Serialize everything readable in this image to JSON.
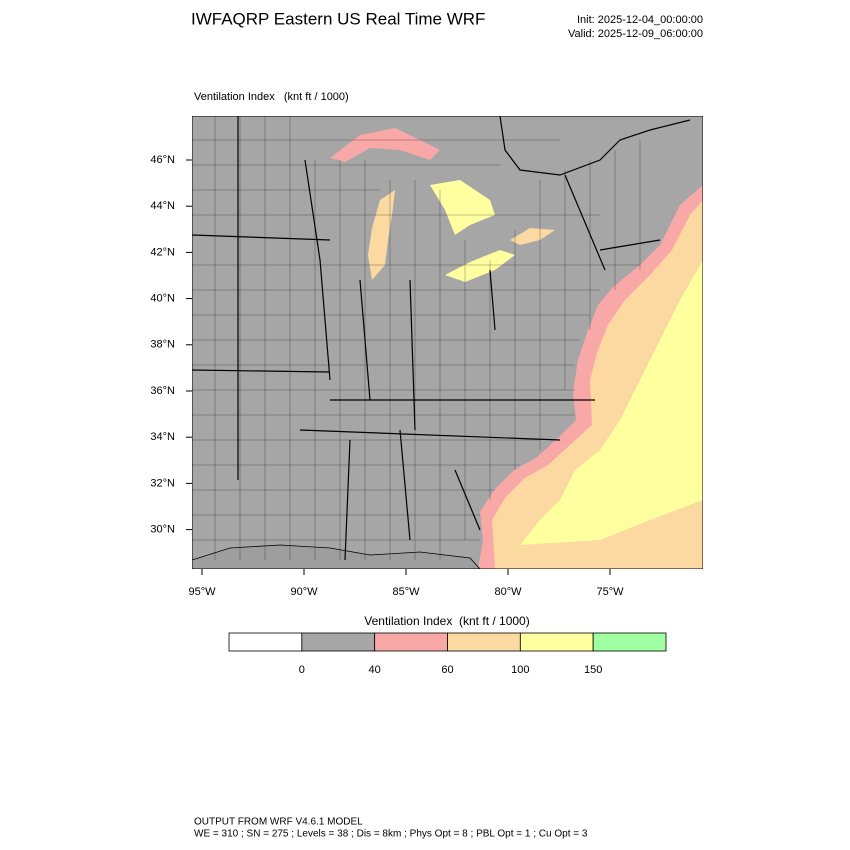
{
  "header": {
    "title": "IWFAQRP Eastern US Real Time WRF",
    "init": "Init: 2025-12-04_00:00:00",
    "valid": "Valid: 2025-12-09_06:00:00"
  },
  "map": {
    "title": "Ventilation Index   (knt ft / 1000)",
    "lat_labels": [
      "46°N",
      "44°N",
      "42°N",
      "40°N",
      "38°N",
      "36°N",
      "34°N",
      "32°N",
      "30°N"
    ],
    "lon_labels": [
      "95°W",
      "90°W",
      "85°W",
      "80°W",
      "75°W"
    ]
  },
  "colorbar": {
    "title": "Ventilation Index  (knt ft / 1000)",
    "ticks": [
      0,
      40,
      60,
      100,
      150
    ],
    "colors": [
      "#ffffff",
      "#a6a6a6",
      "#f9a8a8",
      "#fcd9a0",
      "#ffffa0",
      "#a0ffa0"
    ]
  },
  "footer": {
    "line1": "OUTPUT FROM WRF V4.6.1 MODEL",
    "line2": "WE = 310 ; SN = 275 ; Levels = 38 ; Dis = 8km ; Phys Opt = 8 ; PBL Opt = 1 ; Cu Opt = 3"
  }
}
